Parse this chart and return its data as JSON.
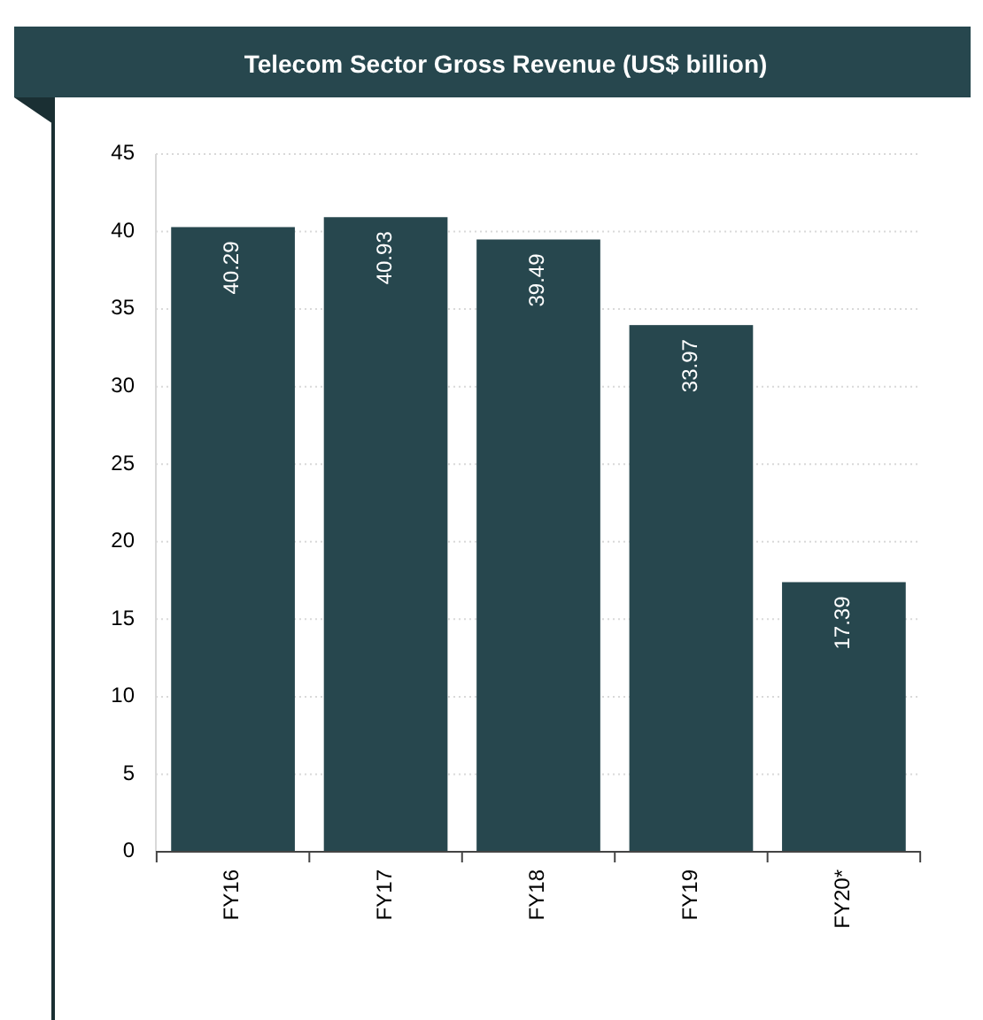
{
  "chart_data": {
    "type": "bar",
    "title": "Telecom Sector Gross Revenue (US$ billion)",
    "categories": [
      "FY16",
      "FY17",
      "FY18",
      "FY19",
      "FY20*"
    ],
    "values": [
      40.29,
      40.93,
      39.49,
      33.97,
      17.39
    ],
    "color": "#27474e",
    "ylim": [
      0,
      45
    ],
    "yticks": [
      0,
      5,
      10,
      15,
      20,
      25,
      30,
      35,
      40,
      45
    ],
    "grid": "y",
    "data_labels": true
  }
}
